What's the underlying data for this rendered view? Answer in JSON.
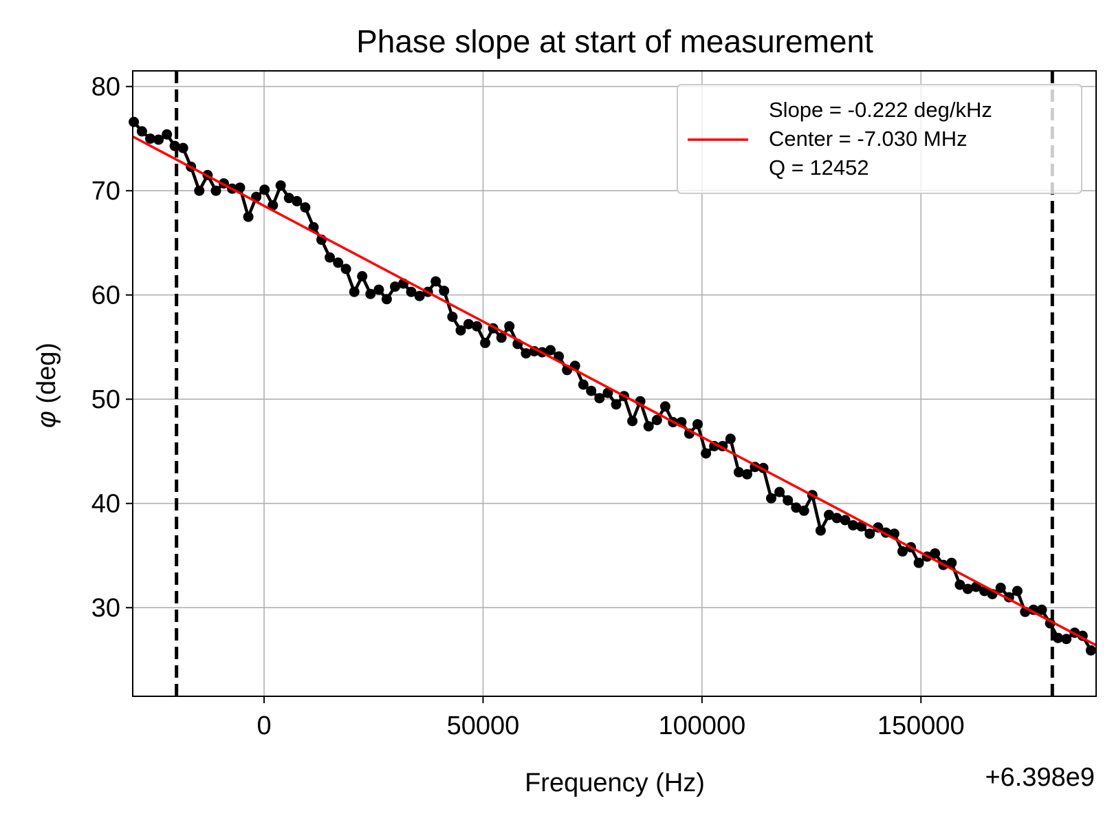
{
  "chart_data": {
    "type": "line",
    "title": "Phase slope at start of measurement",
    "xlabel": "Frequency (Hz)",
    "ylabel": "(deg)",
    "ylabel_symbol": "φ",
    "x_offset_label": "+6.398e9",
    "xlim": [
      -30000,
      190000
    ],
    "ylim": [
      21.5,
      81.5
    ],
    "xticks": [
      0,
      50000,
      100000,
      150000
    ],
    "xtick_labels": [
      "0",
      "50000",
      "100000",
      "150000"
    ],
    "yticks": [
      30,
      40,
      50,
      60,
      70,
      80
    ],
    "ytick_labels": [
      "30",
      "40",
      "50",
      "60",
      "70",
      "80"
    ],
    "grid": true,
    "legend_position": "top-right",
    "colors": {
      "measured": "#000000",
      "fit": "#ff0000",
      "grid": "#b0b0b0",
      "vline": "#000000"
    },
    "vertical_lines_x": [
      -20000,
      180000
    ],
    "series": [
      {
        "style": "line+markers",
        "x": [
          -29750,
          -27900,
          -26000,
          -24100,
          -22200,
          -20400,
          -18500,
          -16700,
          -14800,
          -12900,
          -11000,
          -9200,
          -7300,
          -5500,
          -3600,
          -1800,
          100,
          2000,
          3800,
          5700,
          7500,
          9400,
          11300,
          13100,
          15000,
          16900,
          18700,
          20600,
          22400,
          24300,
          26200,
          28000,
          29900,
          31800,
          33600,
          35500,
          37400,
          39200,
          41100,
          43000,
          44900,
          46700,
          48600,
          50500,
          52300,
          54200,
          56000,
          57900,
          59800,
          61700,
          63500,
          65400,
          67300,
          69200,
          71000,
          72900,
          74700,
          76600,
          78500,
          80400,
          82200,
          84100,
          85900,
          87800,
          89700,
          91600,
          93400,
          95300,
          97100,
          99000,
          100900,
          102800,
          104700,
          106500,
          108400,
          110300,
          112100,
          114000,
          115800,
          117700,
          119600,
          121500,
          123300,
          125200,
          127100,
          129000,
          130800,
          132700,
          134500,
          136400,
          138300,
          140200,
          142000,
          143900,
          145800,
          147700,
          149500,
          151400,
          153200,
          155100,
          157000,
          158900,
          160700,
          162600,
          164500,
          166300,
          168200,
          170100,
          172000,
          173800,
          175700,
          177600,
          179500,
          181300,
          183200,
          185100,
          186900,
          188800
        ],
        "y": [
          76.6,
          75.7,
          75.0,
          74.9,
          75.4,
          74.3,
          74.1,
          72.3,
          70.0,
          71.5,
          70.0,
          70.7,
          70.2,
          70.3,
          67.5,
          69.4,
          70.1,
          68.6,
          70.5,
          69.3,
          69.0,
          68.4,
          66.5,
          65.3,
          63.6,
          63.1,
          62.5,
          60.3,
          61.8,
          60.1,
          60.5,
          59.6,
          60.8,
          61.1,
          60.3,
          59.9,
          60.3,
          61.3,
          60.4,
          57.9,
          56.6,
          57.2,
          57.0,
          55.4,
          56.8,
          55.9,
          57.0,
          55.3,
          54.4,
          54.6,
          54.5,
          54.7,
          54.1,
          52.8,
          53.2,
          51.4,
          50.8,
          50.1,
          50.6,
          49.5,
          50.3,
          47.9,
          49.8,
          47.4,
          48.0,
          49.3,
          47.8,
          47.8,
          46.7,
          47.6,
          44.8,
          45.5,
          45.5,
          46.2,
          43.0,
          42.8,
          43.5,
          43.4,
          40.5,
          41.1,
          40.3,
          39.6,
          39.3,
          40.8,
          37.4,
          38.9,
          38.6,
          38.4,
          37.9,
          37.8,
          37.1,
          37.7,
          37.2,
          37.1,
          35.4,
          35.8,
          34.3,
          34.9,
          35.2,
          34.1,
          34.3,
          32.2,
          31.8,
          32.0,
          31.6,
          31.3,
          31.9,
          31.0,
          31.6,
          29.6,
          29.8,
          29.8,
          28.5,
          27.1,
          27.0,
          27.6,
          27.3,
          25.9
        ]
      },
      {
        "name": "Slope = -0.222 deg/kHz\nCenter = -7.030 MHz\nQ = 12452",
        "style": "line",
        "x": [
          -30000,
          190000
        ],
        "y": [
          75.2,
          26.4
        ]
      }
    ]
  },
  "legend": {
    "lines": [
      "Slope = -0.222 deg/kHz",
      "Center = -7.030 MHz",
      "Q = 12452"
    ]
  }
}
